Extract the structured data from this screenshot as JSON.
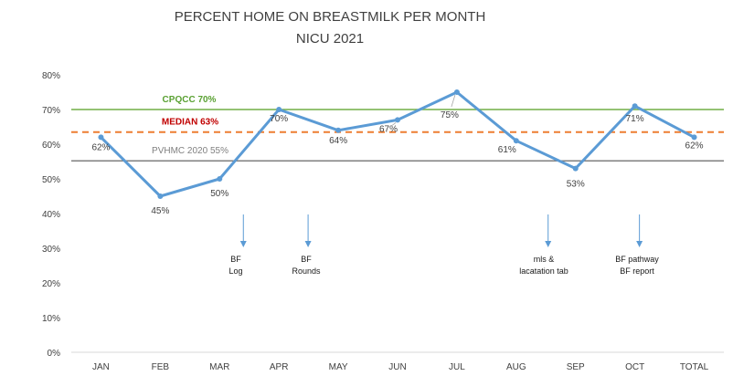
{
  "chart_data": {
    "type": "line",
    "title": "PERCENT HOME ON BREASTMILK PER MONTH",
    "subtitle": "NICU 2021",
    "categories": [
      "JAN",
      "FEB",
      "MAR",
      "APR",
      "MAY",
      "JUN",
      "JUL",
      "AUG",
      "SEP",
      "OCT",
      "TOTAL"
    ],
    "ylim": [
      0,
      80
    ],
    "yticks": [
      0,
      10,
      20,
      30,
      40,
      50,
      60,
      70,
      80
    ],
    "ytick_labels": [
      "0%",
      "10%",
      "20%",
      "30%",
      "40%",
      "50%",
      "60%",
      "70%",
      "80%"
    ],
    "grid": false,
    "series": [
      {
        "values": [
          62,
          45,
          50,
          70,
          64,
          67,
          75,
          61,
          53,
          71,
          62
        ],
        "labels": [
          "62%",
          "45%",
          "50%",
          "70%",
          "64%",
          "67%",
          "75%",
          "61%",
          "53%",
          "71%",
          "62%"
        ],
        "color": "#5b9bd5"
      }
    ],
    "reference_lines": [
      {
        "label": "CPQCC 70%",
        "value": 70,
        "color": "#70ad47",
        "style": "solid"
      },
      {
        "label": "MEDIAN  63%",
        "value": 63.5,
        "color": "#ed7d31",
        "style": "dashed"
      },
      {
        "label": "PVHMC 2020 55%",
        "value": 55.2,
        "color": "#7f7f7f",
        "style": "solid"
      }
    ],
    "annotations": [
      {
        "month": "MAR",
        "lines": [
          "BF",
          "Log"
        ]
      },
      {
        "month": "MAY",
        "lines": [
          "BF",
          "Rounds"
        ]
      },
      {
        "month": "SEP",
        "lines": [
          "mls &",
          "lacatation tab"
        ]
      },
      {
        "month": "OCT",
        "lines": [
          "BF pathway",
          "BF report"
        ]
      }
    ],
    "annotation_arrow_color": "#5b9bd5",
    "axis_color": "#d9d9d9"
  }
}
